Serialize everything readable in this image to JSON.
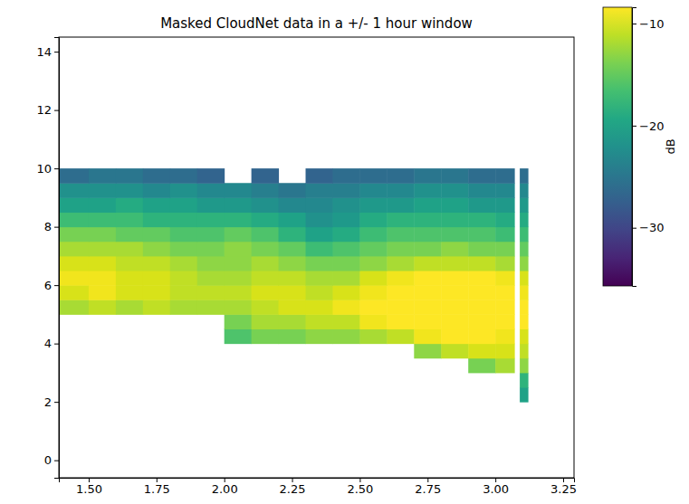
{
  "chart_data": {
    "type": "heatmap",
    "title": "Masked CloudNet data in a +/- 1 hour window",
    "xlim": [
      1.39,
      3.29
    ],
    "xticks": [
      {
        "value": 1.5,
        "label": "1.50"
      },
      {
        "value": 1.75,
        "label": "1.75"
      },
      {
        "value": 2.0,
        "label": "2.00"
      },
      {
        "value": 2.25,
        "label": "2.25"
      },
      {
        "value": 2.5,
        "label": "2.50"
      },
      {
        "value": 2.75,
        "label": "2.75"
      },
      {
        "value": 3.0,
        "label": "3.00"
      },
      {
        "value": 3.25,
        "label": "3.25"
      }
    ],
    "ylim": [
      -0.6,
      14.5
    ],
    "yticks": [
      0,
      2,
      4,
      6,
      8,
      10,
      12,
      14
    ],
    "x_edges": [
      1.39,
      1.5,
      1.6,
      1.7,
      1.8,
      1.9,
      2.0,
      2.1,
      2.2,
      2.3,
      2.4,
      2.5,
      2.6,
      2.7,
      2.8,
      2.9,
      3.0,
      3.07,
      3.09,
      3.12
    ],
    "y_edges": [
      2.0,
      2.5,
      3.0,
      3.5,
      4.0,
      4.5,
      5.0,
      5.5,
      6.0,
      6.5,
      7.0,
      7.5,
      8.0,
      8.5,
      9.0,
      9.5,
      10.0
    ],
    "z": [
      [
        null,
        null,
        null,
        null,
        null,
        null,
        null,
        null,
        null,
        null,
        null,
        null,
        null,
        null,
        null,
        null,
        null,
        null,
        -20
      ],
      [
        null,
        null,
        null,
        null,
        null,
        null,
        null,
        null,
        null,
        null,
        null,
        null,
        null,
        null,
        null,
        null,
        null,
        null,
        -18
      ],
      [
        null,
        null,
        null,
        null,
        null,
        null,
        null,
        null,
        null,
        null,
        null,
        null,
        null,
        null,
        null,
        -14,
        -12,
        null,
        -13
      ],
      [
        null,
        null,
        null,
        null,
        null,
        null,
        null,
        null,
        null,
        null,
        null,
        null,
        null,
        -13,
        -11,
        -10,
        -10,
        null,
        -11
      ],
      [
        null,
        null,
        null,
        null,
        null,
        null,
        -16,
        -14,
        -14,
        -13,
        -13,
        -12,
        -11,
        -9,
        -8,
        -8,
        -9,
        null,
        -10
      ],
      [
        null,
        null,
        null,
        null,
        null,
        null,
        -14,
        -12,
        -12,
        -11,
        -11,
        -9,
        -8,
        -6,
        -5,
        -6,
        -7,
        null,
        -8
      ],
      [
        -12,
        -11,
        -12,
        -11,
        -12,
        -12,
        -12,
        -11,
        -10,
        -10,
        -9,
        -8,
        -7,
        -6,
        -5,
        -5,
        -6,
        null,
        -8
      ],
      [
        -10,
        -9,
        -10,
        -10,
        -11,
        -11,
        -11,
        -10,
        -10,
        -11,
        -10,
        -9,
        -7,
        -6,
        -6,
        -6,
        -7,
        null,
        -9
      ],
      [
        -9,
        -9,
        -10,
        -10,
        -11,
        -12,
        -12,
        -11,
        -11,
        -12,
        -12,
        -10,
        -9,
        -8,
        -8,
        -8,
        -9,
        null,
        -10
      ],
      [
        -10,
        -10,
        -11,
        -11,
        -12,
        -13,
        -13,
        -12,
        -13,
        -14,
        -14,
        -13,
        -12,
        -11,
        -11,
        -11,
        -12,
        null,
        -13
      ],
      [
        -12,
        -12,
        -12,
        -13,
        -14,
        -14,
        -13,
        -14,
        -15,
        -17,
        -16,
        -15,
        -14,
        -14,
        -13,
        -14,
        -14,
        null,
        -15
      ],
      [
        -14,
        -14,
        -15,
        -15,
        -16,
        -16,
        -15,
        -16,
        -18,
        -20,
        -19,
        -17,
        -16,
        -16,
        -16,
        -16,
        -17,
        null,
        -17
      ],
      [
        -17,
        -17,
        -17,
        -18,
        -18,
        -18,
        -18,
        -19,
        -20,
        -22,
        -21,
        -19,
        -18,
        -18,
        -18,
        -18,
        -19,
        null,
        -19
      ],
      [
        -20,
        -20,
        -19,
        -20,
        -20,
        -21,
        -21,
        -22,
        -23,
        -23,
        -22,
        -21,
        -21,
        -20,
        -20,
        -21,
        -21,
        null,
        -21
      ],
      [
        -22,
        -22,
        -22,
        -23,
        -22,
        -23,
        -23,
        -24,
        -25,
        -24,
        -24,
        -23,
        -23,
        -22,
        -22,
        -23,
        -23,
        null,
        -23
      ],
      [
        -26,
        -25,
        -25,
        -26,
        -26,
        -27,
        null,
        -27,
        null,
        -27,
        -26,
        -26,
        -26,
        -25,
        -25,
        -26,
        -26,
        null,
        -26
      ]
    ],
    "clim": [
      -35.7,
      -8.4
    ],
    "cticks": [
      {
        "value": -10,
        "label": "−10"
      },
      {
        "value": -20,
        "label": "−20"
      },
      {
        "value": -30,
        "label": "−30"
      }
    ],
    "colorbar_label": "dB"
  }
}
